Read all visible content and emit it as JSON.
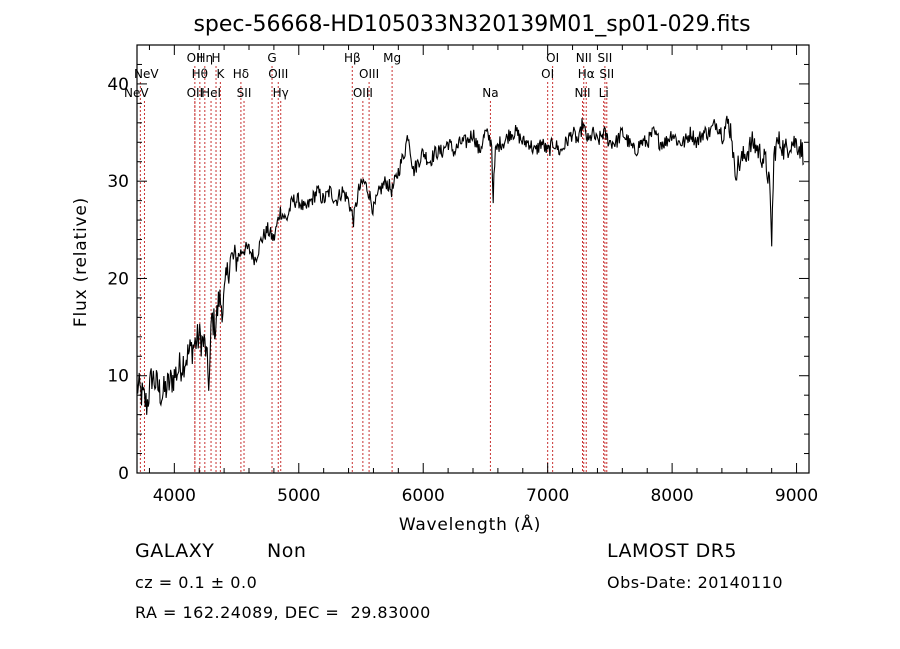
{
  "chart_data": {
    "type": "line",
    "title": "spec-56668-HD105033N320139M01_sp01-029.fits",
    "xlabel": "Wavelength (Å)",
    "ylabel": "Flux (relative)",
    "xlim": [
      3700,
      9100
    ],
    "ylim": [
      0,
      44
    ],
    "xticks": [
      4000,
      5000,
      6000,
      7000,
      8000,
      9000
    ],
    "yticks": [
      0,
      10,
      20,
      30,
      40
    ],
    "grid": false,
    "line_color": "#000000",
    "marker_color": "#c83232",
    "spectrum": {
      "name": "",
      "x": [
        3700,
        3740,
        3780,
        3820,
        3860,
        3900,
        3950,
        4000,
        4050,
        4100,
        4150,
        4200,
        4250,
        4280,
        4300,
        4330,
        4360,
        4390,
        4420,
        4450,
        4500,
        4550,
        4600,
        4650,
        4700,
        4750,
        4800,
        4850,
        4900,
        4950,
        5000,
        5050,
        5100,
        5150,
        5200,
        5250,
        5300,
        5350,
        5400,
        5440,
        5480,
        5520,
        5560,
        5600,
        5650,
        5700,
        5750,
        5800,
        5850,
        5880,
        5920,
        5960,
        6000,
        6050,
        6100,
        6150,
        6200,
        6250,
        6300,
        6350,
        6400,
        6450,
        6500,
        6550,
        6560,
        6580,
        6620,
        6650,
        6700,
        6750,
        6800,
        6850,
        6900,
        6950,
        7000,
        7050,
        7100,
        7150,
        7200,
        7250,
        7280,
        7300,
        7330,
        7360,
        7400,
        7450,
        7500,
        7550,
        7600,
        7650,
        7700,
        7750,
        7800,
        7850,
        7900,
        7950,
        8000,
        8050,
        8100,
        8150,
        8200,
        8250,
        8300,
        8350,
        8400,
        8450,
        8480,
        8500,
        8550,
        8600,
        8650,
        8700,
        8750,
        8780,
        8800,
        8820,
        8850,
        8880,
        8900,
        8950,
        9000,
        9050
      ],
      "y": [
        9,
        8,
        7,
        10,
        9,
        8,
        9,
        10,
        11,
        12,
        13,
        14,
        13,
        9,
        16,
        15,
        18,
        17,
        20,
        22,
        22,
        23,
        23,
        22,
        24,
        25,
        24,
        27,
        26,
        28,
        28,
        27,
        28,
        29,
        28,
        29,
        28,
        29,
        28,
        26,
        29,
        30,
        29,
        27,
        29,
        30,
        29,
        31,
        33,
        35,
        31,
        32,
        33,
        32,
        33,
        33,
        34,
        33,
        34,
        34,
        35,
        33,
        35,
        34,
        28,
        33,
        34,
        34,
        35,
        35,
        34,
        34,
        33,
        34,
        33,
        34,
        33,
        34,
        35,
        34,
        36,
        35,
        34,
        35,
        34,
        35,
        34,
        34,
        35,
        34,
        33,
        34,
        34,
        35,
        34,
        34,
        35,
        34,
        34,
        35,
        34,
        35,
        35,
        36,
        35,
        36,
        35,
        31,
        32,
        33,
        34,
        33,
        32,
        30,
        24,
        33,
        34,
        34,
        33,
        34,
        34,
        33
      ],
      "noise": 0.8
    },
    "line_markers": [
      {
        "label": "NeV",
        "wl": 3727,
        "tier": 1,
        "side": "left"
      },
      {
        "label": "NeV",
        "wl": 3760,
        "tier": 3,
        "side": "left"
      },
      {
        "label": "OII",
        "wl": 4165,
        "tier": 0,
        "side": "center"
      },
      {
        "label": "OII",
        "wl": 4165,
        "tier": 2,
        "side": "center"
      },
      {
        "label": "Hη",
        "wl": 4245,
        "tier": 0,
        "side": "center"
      },
      {
        "label": "Hθ",
        "wl": 4205,
        "tier": 1,
        "side": "center"
      },
      {
        "label": "H",
        "wl": 4335,
        "tier": 0,
        "side": "center"
      },
      {
        "label": "HeI",
        "wl": 4295,
        "tier": 2,
        "side": "center"
      },
      {
        "label": "K",
        "wl": 4370,
        "tier": 1,
        "side": "center"
      },
      {
        "label": "Hδ",
        "wl": 4535,
        "tier": 1,
        "side": "center"
      },
      {
        "label": "SII",
        "wl": 4560,
        "tier": 2,
        "side": "center"
      },
      {
        "label": "G",
        "wl": 4785,
        "tier": 0,
        "side": "center"
      },
      {
        "label": "OIII",
        "wl": 4835,
        "tier": 1,
        "side": "center"
      },
      {
        "label": "Hγ",
        "wl": 4855,
        "tier": 2,
        "side": "center"
      },
      {
        "label": "Hβ",
        "wl": 5430,
        "tier": 0,
        "side": "center"
      },
      {
        "label": "OIII",
        "wl": 5565,
        "tier": 1,
        "side": "center"
      },
      {
        "label": "OIII",
        "wl": 5515,
        "tier": 2,
        "side": "center"
      },
      {
        "label": "Mg",
        "wl": 5750,
        "tier": 0,
        "side": "center"
      },
      {
        "label": "Na",
        "wl": 6540,
        "tier": 2,
        "side": "center"
      },
      {
        "label": "OI",
        "wl": 7040,
        "tier": 0,
        "side": "center"
      },
      {
        "label": "OI",
        "wl": 7000,
        "tier": 1,
        "side": "center"
      },
      {
        "label": "NII",
        "wl": 7290,
        "tier": 0,
        "side": "center"
      },
      {
        "label": "Hα",
        "wl": 7310,
        "tier": 1,
        "side": "center"
      },
      {
        "label": "NII",
        "wl": 7280,
        "tier": 2,
        "side": "center"
      },
      {
        "label": "SII",
        "wl": 7460,
        "tier": 0,
        "side": "center"
      },
      {
        "label": "SII",
        "wl": 7475,
        "tier": 1,
        "side": "center"
      },
      {
        "label": "Li",
        "wl": 7450,
        "tier": 2,
        "side": "center"
      }
    ]
  },
  "info": {
    "class": "GALAXY",
    "subclass": "Non",
    "cz": "cz = 0.1 ± 0.0",
    "coords": "RA = 162.24089, DEC =  29.83000",
    "survey": "LAMOST DR5",
    "obs_date": "Obs-Date: 20140110"
  }
}
